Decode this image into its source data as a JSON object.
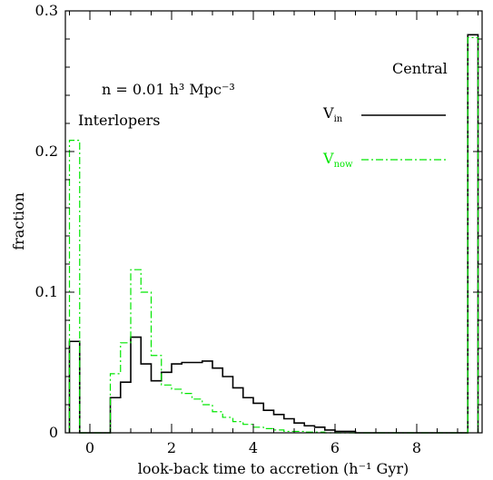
{
  "colors": {
    "vin": "#000000",
    "vnow": "#00e600",
    "axis": "#000000",
    "background": "#ffffff"
  },
  "chart_data": {
    "type": "histogram-step",
    "title": "",
    "xlabel": "look-back time to accretion (h⁻¹ Gyr)",
    "ylabel": "fraction",
    "xlim": [
      -0.6,
      9.6
    ],
    "ylim": [
      0,
      0.3
    ],
    "x_ticks": [
      0,
      2,
      4,
      6,
      8
    ],
    "y_ticks": [
      0,
      0.1,
      0.2,
      0.3
    ],
    "x_tick_labels": [
      "0",
      "2",
      "4",
      "6",
      "8"
    ],
    "y_tick_labels": [
      "0",
      "0.1",
      "0.2",
      "0.3"
    ],
    "annotations": {
      "density": {
        "text": "n = 0.01 h³ Mpc⁻³"
      },
      "interlopers": {
        "text": "Interlopers"
      },
      "central": {
        "text": "Central"
      }
    },
    "legend": {
      "placement": "top-right",
      "entries": [
        {
          "main": "V",
          "sub": "in",
          "series": "vin"
        },
        {
          "main": "V",
          "sub": "now",
          "series": "vnow"
        }
      ]
    },
    "series": [
      {
        "key": "vin",
        "style": "solid",
        "edges": [
          -0.5,
          -0.25,
          0.0,
          0.25,
          0.5,
          0.75,
          1.0,
          1.25,
          1.5,
          1.75,
          2.0,
          2.25,
          2.5,
          2.75,
          3.0,
          3.25,
          3.5,
          3.75,
          4.0,
          4.25,
          4.5,
          4.75,
          5.0,
          5.25,
          5.5,
          5.75,
          6.0,
          6.25,
          6.5,
          6.75,
          7.0,
          7.25,
          7.5,
          7.75,
          8.0,
          8.25,
          8.5,
          8.75,
          9.0,
          9.25,
          9.5
        ],
        "values": [
          0.065,
          0,
          0,
          0,
          0.025,
          0.036,
          0.068,
          0.049,
          0.037,
          0.043,
          0.049,
          0.05,
          0.05,
          0.051,
          0.046,
          0.04,
          0.032,
          0.025,
          0.021,
          0.016,
          0.013,
          0.01,
          0.007,
          0.005,
          0.004,
          0.002,
          0.001,
          0.001,
          0,
          0,
          0,
          0,
          0,
          0,
          0,
          0,
          0,
          0,
          0,
          0.283
        ]
      },
      {
        "key": "vnow",
        "style": "dash-dot",
        "edges": [
          -0.5,
          -0.25,
          0.0,
          0.25,
          0.5,
          0.75,
          1.0,
          1.25,
          1.5,
          1.75,
          2.0,
          2.25,
          2.5,
          2.75,
          3.0,
          3.25,
          3.5,
          3.75,
          4.0,
          4.25,
          4.5,
          4.75,
          5.0,
          5.25,
          5.5,
          5.75,
          6.0,
          6.25,
          6.5,
          6.75,
          7.0,
          7.25,
          7.5,
          7.75,
          8.0,
          8.25,
          8.5,
          8.75,
          9.0,
          9.25,
          9.5
        ],
        "values": [
          0.208,
          0,
          0,
          0,
          0.042,
          0.064,
          0.116,
          0.1,
          0.055,
          0.034,
          0.031,
          0.028,
          0.024,
          0.02,
          0.015,
          0.011,
          0.008,
          0.006,
          0.004,
          0.003,
          0.002,
          0.001,
          0.001,
          0.0005,
          0.0005,
          0,
          0,
          0,
          0,
          0,
          0,
          0,
          0,
          0,
          0,
          0,
          0,
          0,
          0,
          0.281
        ]
      }
    ]
  }
}
